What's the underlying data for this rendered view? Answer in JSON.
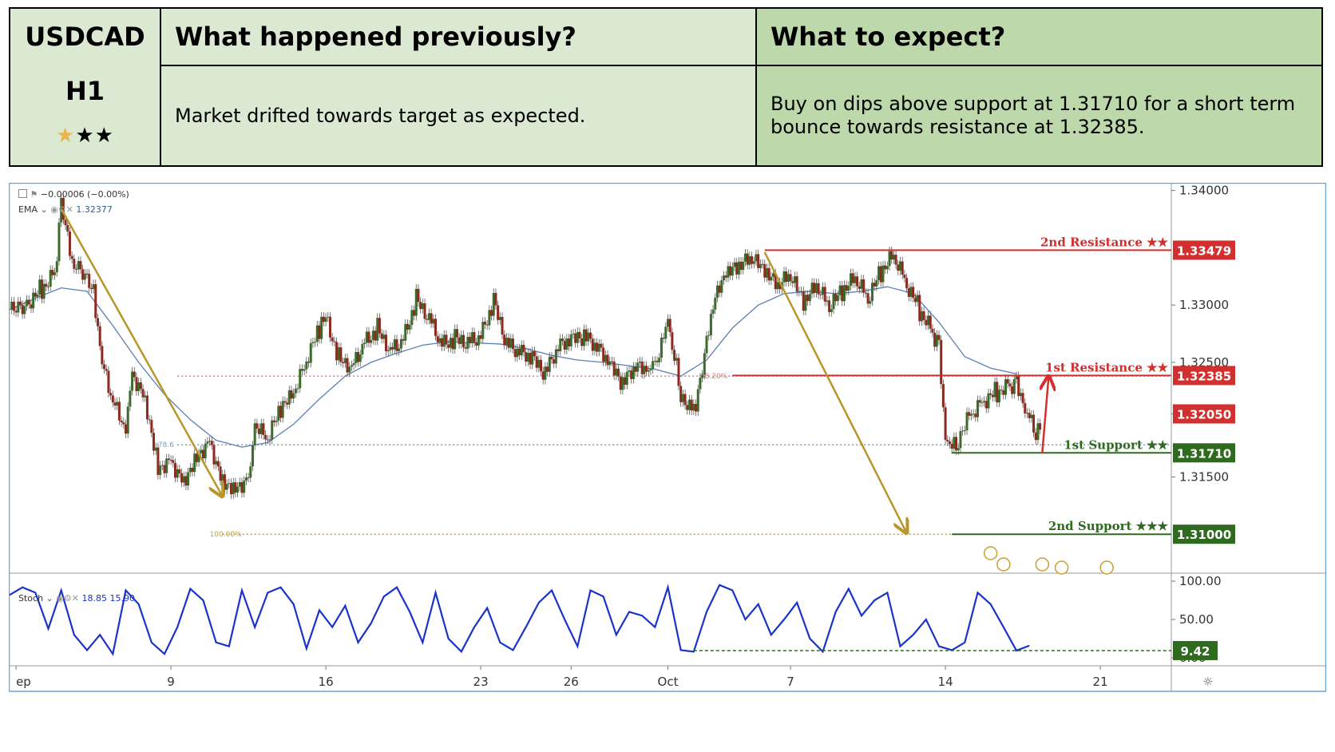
{
  "header": {
    "symbol": "USDCAD",
    "timeframe": "H1",
    "rating": {
      "filled": 1,
      "of": 3,
      "star_filled": "★",
      "star_empty": "★"
    },
    "prev_title": "What happened previously?",
    "prev_text": "Market drifted towards target as expected.",
    "expect_title": "What to expect?",
    "expect_text": "Buy on dips above support at 1.31710 for a short term bounce towards resistance at 1.32385."
  },
  "indicators": {
    "price_change": "−0.00006 (−0.00%)",
    "ema_label": "EMA",
    "ema_value": "1.32377",
    "stoch_label": "Stoch",
    "stoch_k": "18.85",
    "stoch_d": "15.90"
  },
  "chart_data": {
    "type": "line",
    "price_axis": {
      "min": 1.3066,
      "max": 1.3406,
      "ticks": [
        "1.34000",
        "1.33000",
        "1.32500",
        "1.32050",
        "1.31500"
      ]
    },
    "stoch_axis": {
      "min": 0,
      "max": 100,
      "ticks": [
        "100.00",
        "50.00",
        "0.00"
      ]
    },
    "x_ticks": [
      "ep",
      "9",
      "16",
      "23",
      "26",
      "Oct",
      "7",
      "14",
      "21"
    ],
    "x_ticks_pos": [
      1,
      25,
      49,
      73,
      87,
      102,
      121,
      145,
      169
    ],
    "x_range": [
      0,
      180
    ],
    "price_path": [
      [
        0,
        1.3292
      ],
      [
        3,
        1.3304
      ],
      [
        5,
        1.3315
      ],
      [
        7,
        1.3328
      ],
      [
        8,
        1.3384
      ],
      [
        10,
        1.3332
      ],
      [
        13,
        1.3318
      ],
      [
        14,
        1.3255
      ],
      [
        16,
        1.3215
      ],
      [
        18,
        1.3188
      ],
      [
        19,
        1.3242
      ],
      [
        21,
        1.322
      ],
      [
        23,
        1.316
      ],
      [
        25,
        1.3165
      ],
      [
        27,
        1.3148
      ],
      [
        29,
        1.317
      ],
      [
        31,
        1.3182
      ],
      [
        33,
        1.3148
      ],
      [
        35,
        1.3142
      ],
      [
        37,
        1.315
      ],
      [
        38,
        1.3192
      ],
      [
        40,
        1.3182
      ],
      [
        42,
        1.3208
      ],
      [
        44,
        1.322
      ],
      [
        46,
        1.325
      ],
      [
        48,
        1.3278
      ],
      [
        49,
        1.329
      ],
      [
        51,
        1.3255
      ],
      [
        53,
        1.3248
      ],
      [
        55,
        1.3268
      ],
      [
        57,
        1.328
      ],
      [
        59,
        1.3262
      ],
      [
        61,
        1.327
      ],
      [
        63,
        1.3305
      ],
      [
        65,
        1.329
      ],
      [
        67,
        1.3265
      ],
      [
        69,
        1.327
      ],
      [
        71,
        1.3268
      ],
      [
        73,
        1.3272
      ],
      [
        75,
        1.3302
      ],
      [
        77,
        1.3266
      ],
      [
        79,
        1.3258
      ],
      [
        81,
        1.3252
      ],
      [
        83,
        1.324
      ],
      [
        85,
        1.3262
      ],
      [
        87,
        1.3268
      ],
      [
        89,
        1.3272
      ],
      [
        91,
        1.3262
      ],
      [
        93,
        1.3246
      ],
      [
        95,
        1.323
      ],
      [
        97,
        1.3245
      ],
      [
        99,
        1.324
      ],
      [
        100,
        1.3248
      ],
      [
        102,
        1.329
      ],
      [
        103,
        1.3255
      ],
      [
        104,
        1.3222
      ],
      [
        106,
        1.321
      ],
      [
        107,
        1.323
      ],
      [
        109,
        1.33
      ],
      [
        111,
        1.3325
      ],
      [
        113,
        1.3332
      ],
      [
        115,
        1.334
      ],
      [
        117,
        1.3327
      ],
      [
        119,
        1.3315
      ],
      [
        121,
        1.3325
      ],
      [
        123,
        1.33
      ],
      [
        125,
        1.3315
      ],
      [
        127,
        1.3298
      ],
      [
        129,
        1.331
      ],
      [
        131,
        1.3322
      ],
      [
        133,
        1.3305
      ],
      [
        135,
        1.3328
      ],
      [
        137,
        1.3342
      ],
      [
        139,
        1.3318
      ],
      [
        141,
        1.3295
      ],
      [
        143,
        1.3275
      ],
      [
        144,
        1.326
      ],
      [
        145,
        1.3185
      ],
      [
        146,
        1.3175
      ],
      [
        147,
        1.3185
      ],
      [
        149,
        1.3205
      ],
      [
        151,
        1.3218
      ],
      [
        153,
        1.3225
      ],
      [
        155,
        1.323
      ],
      [
        156,
        1.3228
      ],
      [
        157,
        1.3215
      ],
      [
        158,
        1.32
      ],
      [
        159,
        1.3192
      ],
      [
        160,
        1.3198
      ]
    ],
    "ema_path": [
      [
        0,
        1.3296
      ],
      [
        4,
        1.3306
      ],
      [
        8,
        1.3315
      ],
      [
        12,
        1.3312
      ],
      [
        16,
        1.3282
      ],
      [
        20,
        1.325
      ],
      [
        24,
        1.3222
      ],
      [
        28,
        1.32
      ],
      [
        32,
        1.3182
      ],
      [
        36,
        1.3176
      ],
      [
        40,
        1.318
      ],
      [
        44,
        1.3196
      ],
      [
        48,
        1.3218
      ],
      [
        52,
        1.3238
      ],
      [
        56,
        1.325
      ],
      [
        60,
        1.3258
      ],
      [
        64,
        1.3265
      ],
      [
        68,
        1.3268
      ],
      [
        72,
        1.3267
      ],
      [
        76,
        1.3266
      ],
      [
        80,
        1.3262
      ],
      [
        84,
        1.3256
      ],
      [
        88,
        1.3252
      ],
      [
        92,
        1.325
      ],
      [
        96,
        1.3247
      ],
      [
        100,
        1.3244
      ],
      [
        104,
        1.3238
      ],
      [
        108,
        1.3252
      ],
      [
        112,
        1.328
      ],
      [
        116,
        1.33
      ],
      [
        120,
        1.331
      ],
      [
        124,
        1.3312
      ],
      [
        128,
        1.331
      ],
      [
        132,
        1.3312
      ],
      [
        136,
        1.3316
      ],
      [
        140,
        1.331
      ],
      [
        144,
        1.3285
      ],
      [
        148,
        1.3255
      ],
      [
        152,
        1.3245
      ],
      [
        156,
        1.324
      ]
    ],
    "stoch_path": [
      [
        0,
        82
      ],
      [
        2,
        92
      ],
      [
        4,
        85
      ],
      [
        6,
        38
      ],
      [
        8,
        88
      ],
      [
        10,
        30
      ],
      [
        12,
        10
      ],
      [
        14,
        30
      ],
      [
        16,
        5
      ],
      [
        18,
        88
      ],
      [
        20,
        70
      ],
      [
        22,
        20
      ],
      [
        24,
        5
      ],
      [
        26,
        40
      ],
      [
        28,
        90
      ],
      [
        30,
        75
      ],
      [
        32,
        20
      ],
      [
        34,
        15
      ],
      [
        36,
        88
      ],
      [
        38,
        40
      ],
      [
        40,
        85
      ],
      [
        42,
        92
      ],
      [
        44,
        70
      ],
      [
        46,
        12
      ],
      [
        48,
        62
      ],
      [
        50,
        40
      ],
      [
        52,
        68
      ],
      [
        54,
        20
      ],
      [
        56,
        45
      ],
      [
        58,
        80
      ],
      [
        60,
        92
      ],
      [
        62,
        60
      ],
      [
        64,
        20
      ],
      [
        66,
        85
      ],
      [
        68,
        25
      ],
      [
        70,
        8
      ],
      [
        72,
        40
      ],
      [
        74,
        65
      ],
      [
        76,
        20
      ],
      [
        78,
        10
      ],
      [
        80,
        40
      ],
      [
        82,
        72
      ],
      [
        84,
        88
      ],
      [
        86,
        50
      ],
      [
        88,
        15
      ],
      [
        90,
        88
      ],
      [
        92,
        80
      ],
      [
        94,
        30
      ],
      [
        96,
        60
      ],
      [
        98,
        55
      ],
      [
        100,
        40
      ],
      [
        102,
        92
      ],
      [
        104,
        10
      ],
      [
        106,
        8
      ],
      [
        108,
        60
      ],
      [
        110,
        95
      ],
      [
        112,
        88
      ],
      [
        114,
        50
      ],
      [
        116,
        70
      ],
      [
        118,
        30
      ],
      [
        120,
        50
      ],
      [
        122,
        72
      ],
      [
        124,
        25
      ],
      [
        126,
        8
      ],
      [
        128,
        60
      ],
      [
        130,
        90
      ],
      [
        132,
        55
      ],
      [
        134,
        75
      ],
      [
        136,
        85
      ],
      [
        138,
        15
      ],
      [
        140,
        30
      ],
      [
        142,
        50
      ],
      [
        144,
        15
      ],
      [
        146,
        10
      ],
      [
        148,
        20
      ],
      [
        150,
        85
      ],
      [
        152,
        70
      ],
      [
        154,
        40
      ],
      [
        156,
        9.42
      ],
      [
        158,
        15.9
      ]
    ],
    "stoch_level": {
      "value": 9.42,
      "label": "9.42"
    },
    "levels": [
      {
        "name": "2nd Resistance",
        "stars": "★★",
        "value": 1.33479,
        "label": "1.33479",
        "color": "#d32f2f",
        "x_start": 117
      },
      {
        "name": "1st Resistance",
        "stars": "★★",
        "value": 1.32385,
        "label": "1.32385",
        "color": "#d32f2f",
        "x_start": 112
      },
      {
        "name": "1st Support",
        "stars": "★★",
        "value": 1.3171,
        "label": "1.31710",
        "color": "#2e6b1e",
        "x_start": 146
      },
      {
        "name": "2nd Support",
        "stars": "★★★",
        "value": 1.31,
        "label": "1.31000",
        "color": "#2e6b1e",
        "x_start": 146
      }
    ],
    "current_price": {
      "value": 1.3205,
      "label": "1.32050",
      "color": "#d32f2f"
    },
    "fib_levels": [
      {
        "label": "78.6",
        "value": 1.3178,
        "color": "#7a9cc6"
      },
      {
        "label": "38.20%",
        "value": 1.3238,
        "color": "#d38080"
      },
      {
        "label": "100.00%",
        "value": 1.31,
        "color": "#c8a030"
      }
    ],
    "arrows": [
      {
        "from": [
          8,
          1.3384
        ],
        "to": [
          33,
          1.3133
        ],
        "color": "#b8962a"
      },
      {
        "from": [
          117,
          1.3346
        ],
        "to": [
          139,
          1.3101
        ],
        "color": "#b8962a"
      },
      {
        "from": [
          160,
          1.3171
        ],
        "to": [
          161,
          1.3238
        ],
        "color": "#d32f2f"
      }
    ]
  }
}
